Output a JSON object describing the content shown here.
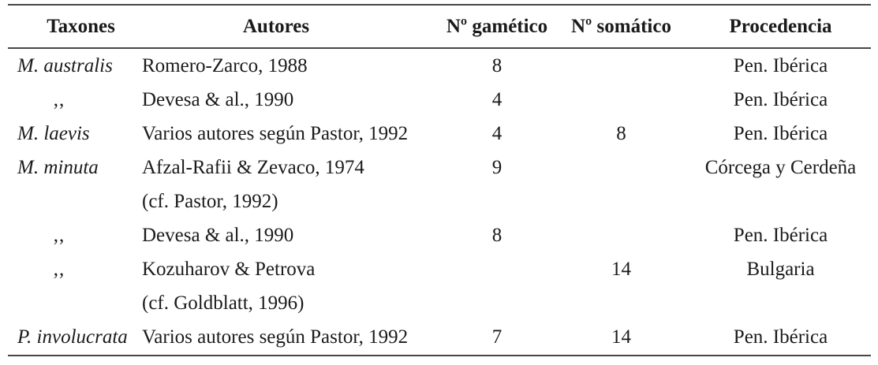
{
  "colors": {
    "rule": "#474747",
    "text": "#1b1b1b",
    "background": "#ffffff"
  },
  "table": {
    "columns": [
      {
        "label": "Taxones"
      },
      {
        "label": "Autores"
      },
      {
        "label": "Nº gamético"
      },
      {
        "label": "Nº somático"
      },
      {
        "label": "Procedencia"
      }
    ],
    "rows": [
      {
        "taxon": "M. australis",
        "italic": true,
        "ditto": false,
        "autores": [
          "Romero-Zarco, 1988"
        ],
        "gametico": "8",
        "somatico": "",
        "procedencia": "Pen. Ibérica"
      },
      {
        "taxon": ",,",
        "italic": false,
        "ditto": true,
        "autores": [
          "Devesa & al., 1990"
        ],
        "gametico": "4",
        "somatico": "",
        "procedencia": "Pen. Ibérica"
      },
      {
        "taxon": "M. laevis",
        "italic": true,
        "ditto": false,
        "autores": [
          "Varios autores según Pastor, 1992"
        ],
        "gametico": "4",
        "somatico": "8",
        "procedencia": "Pen. Ibérica"
      },
      {
        "taxon": "M. minuta",
        "italic": true,
        "ditto": false,
        "autores": [
          "Afzal-Rafii & Zevaco, 1974",
          "(cf. Pastor, 1992)"
        ],
        "gametico": "9",
        "somatico": "",
        "procedencia": "Córcega y Cerdeña"
      },
      {
        "taxon": ",,",
        "italic": false,
        "ditto": true,
        "autores": [
          "Devesa & al., 1990"
        ],
        "gametico": "8",
        "somatico": "",
        "procedencia": "Pen. Ibérica"
      },
      {
        "taxon": ",,",
        "italic": false,
        "ditto": true,
        "autores": [
          "Kozuharov & Petrova",
          "(cf. Goldblatt, 1996)"
        ],
        "gametico": "",
        "somatico": "14",
        "procedencia": "Bulgaria"
      },
      {
        "taxon": "P. involucrata",
        "italic": true,
        "ditto": false,
        "autores": [
          "Varios autores según Pastor, 1992"
        ],
        "gametico": "7",
        "somatico": "14",
        "procedencia": "Pen. Ibérica"
      }
    ]
  }
}
